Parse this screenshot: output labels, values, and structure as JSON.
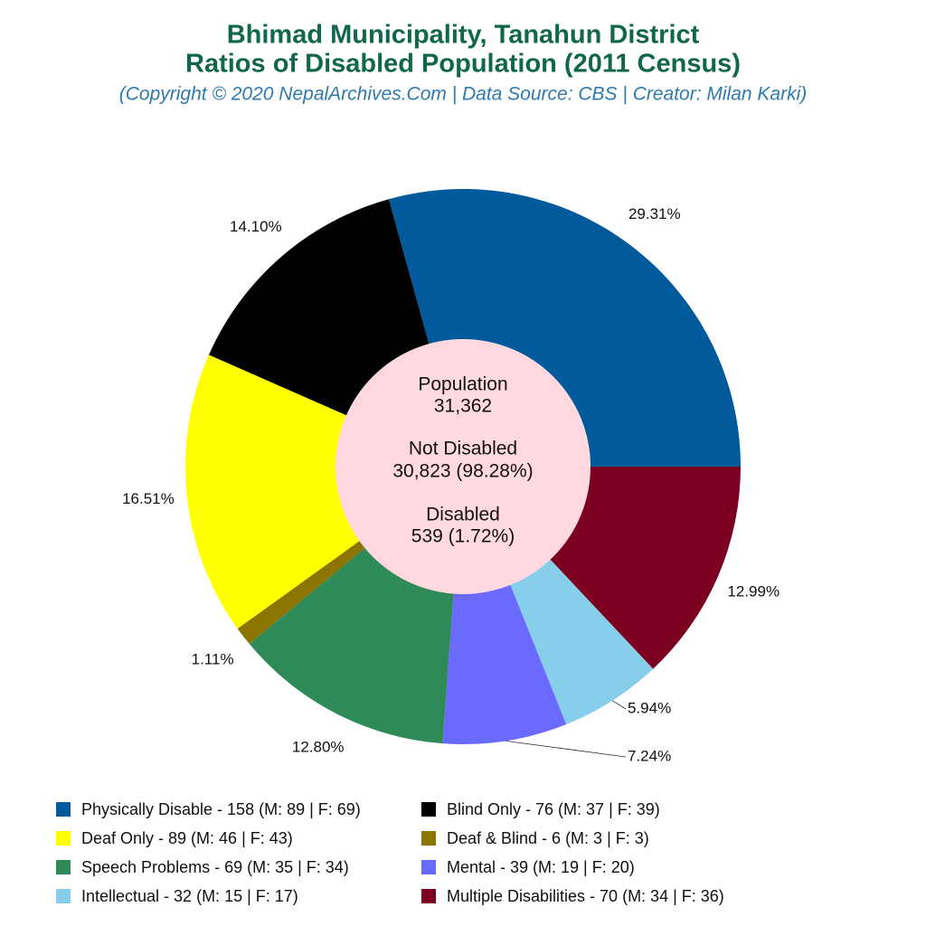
{
  "chart_data": {
    "type": "donut",
    "title": "Bhimad Municipality, Tanahun District",
    "subtitle": "Ratios of Disabled Population (2011 Census)",
    "source": "(Copyright © 2020 NepalArchives.Com | Data Source: CBS | Creator: Milan Karki)",
    "center_text": [
      "Population",
      "31,362",
      "Not Disabled",
      "30,823 (98.28%)",
      "Disabled",
      "539 (1.72%)"
    ],
    "categories": [
      "Physically Disable - 158 (M: 89 | F: 69)",
      "Blind Only - 76 (M: 37 | F: 39)",
      "Deaf Only - 89 (M: 46 | F: 43)",
      "Deaf & Blind - 6 (M: 3 | F: 3)",
      "Speech Problems - 69 (M: 35 | F: 34)",
      "Mental - 39 (M: 19 | F: 20)",
      "Intellectual - 32 (M: 15 | F: 17)",
      "Multiple Disabilities - 70 (M: 34 | F: 36)"
    ],
    "values": [
      29.31,
      14.1,
      16.51,
      1.11,
      12.8,
      7.24,
      5.94,
      12.99
    ],
    "value_labels": [
      "29.31%",
      "14.10%",
      "16.51%",
      "1.11%",
      "12.80%",
      "7.24%",
      "5.94%",
      "12.99%"
    ],
    "colors": [
      "#005a9c",
      "#000000",
      "#ffff00",
      "#8b7500",
      "#2e8b57",
      "#6a6aff",
      "#87ceeb",
      "#7c0020"
    ],
    "center_color": "#ffd9df"
  }
}
